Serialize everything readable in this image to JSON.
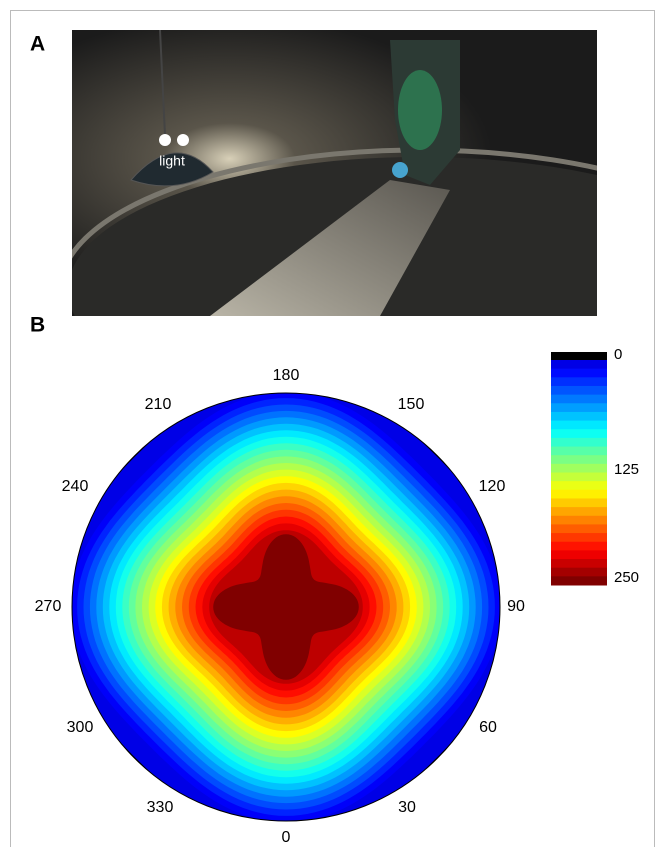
{
  "panels": [
    {
      "label": "A",
      "annotation": "light"
    },
    {
      "label": "B",
      "angle_labels": [
        "180",
        "150",
        "120",
        "90",
        "60",
        "30",
        "0",
        "330",
        "300",
        "270",
        "240",
        "210"
      ],
      "colorbar_ticks": [
        "0",
        "125",
        "250"
      ]
    }
  ]
}
